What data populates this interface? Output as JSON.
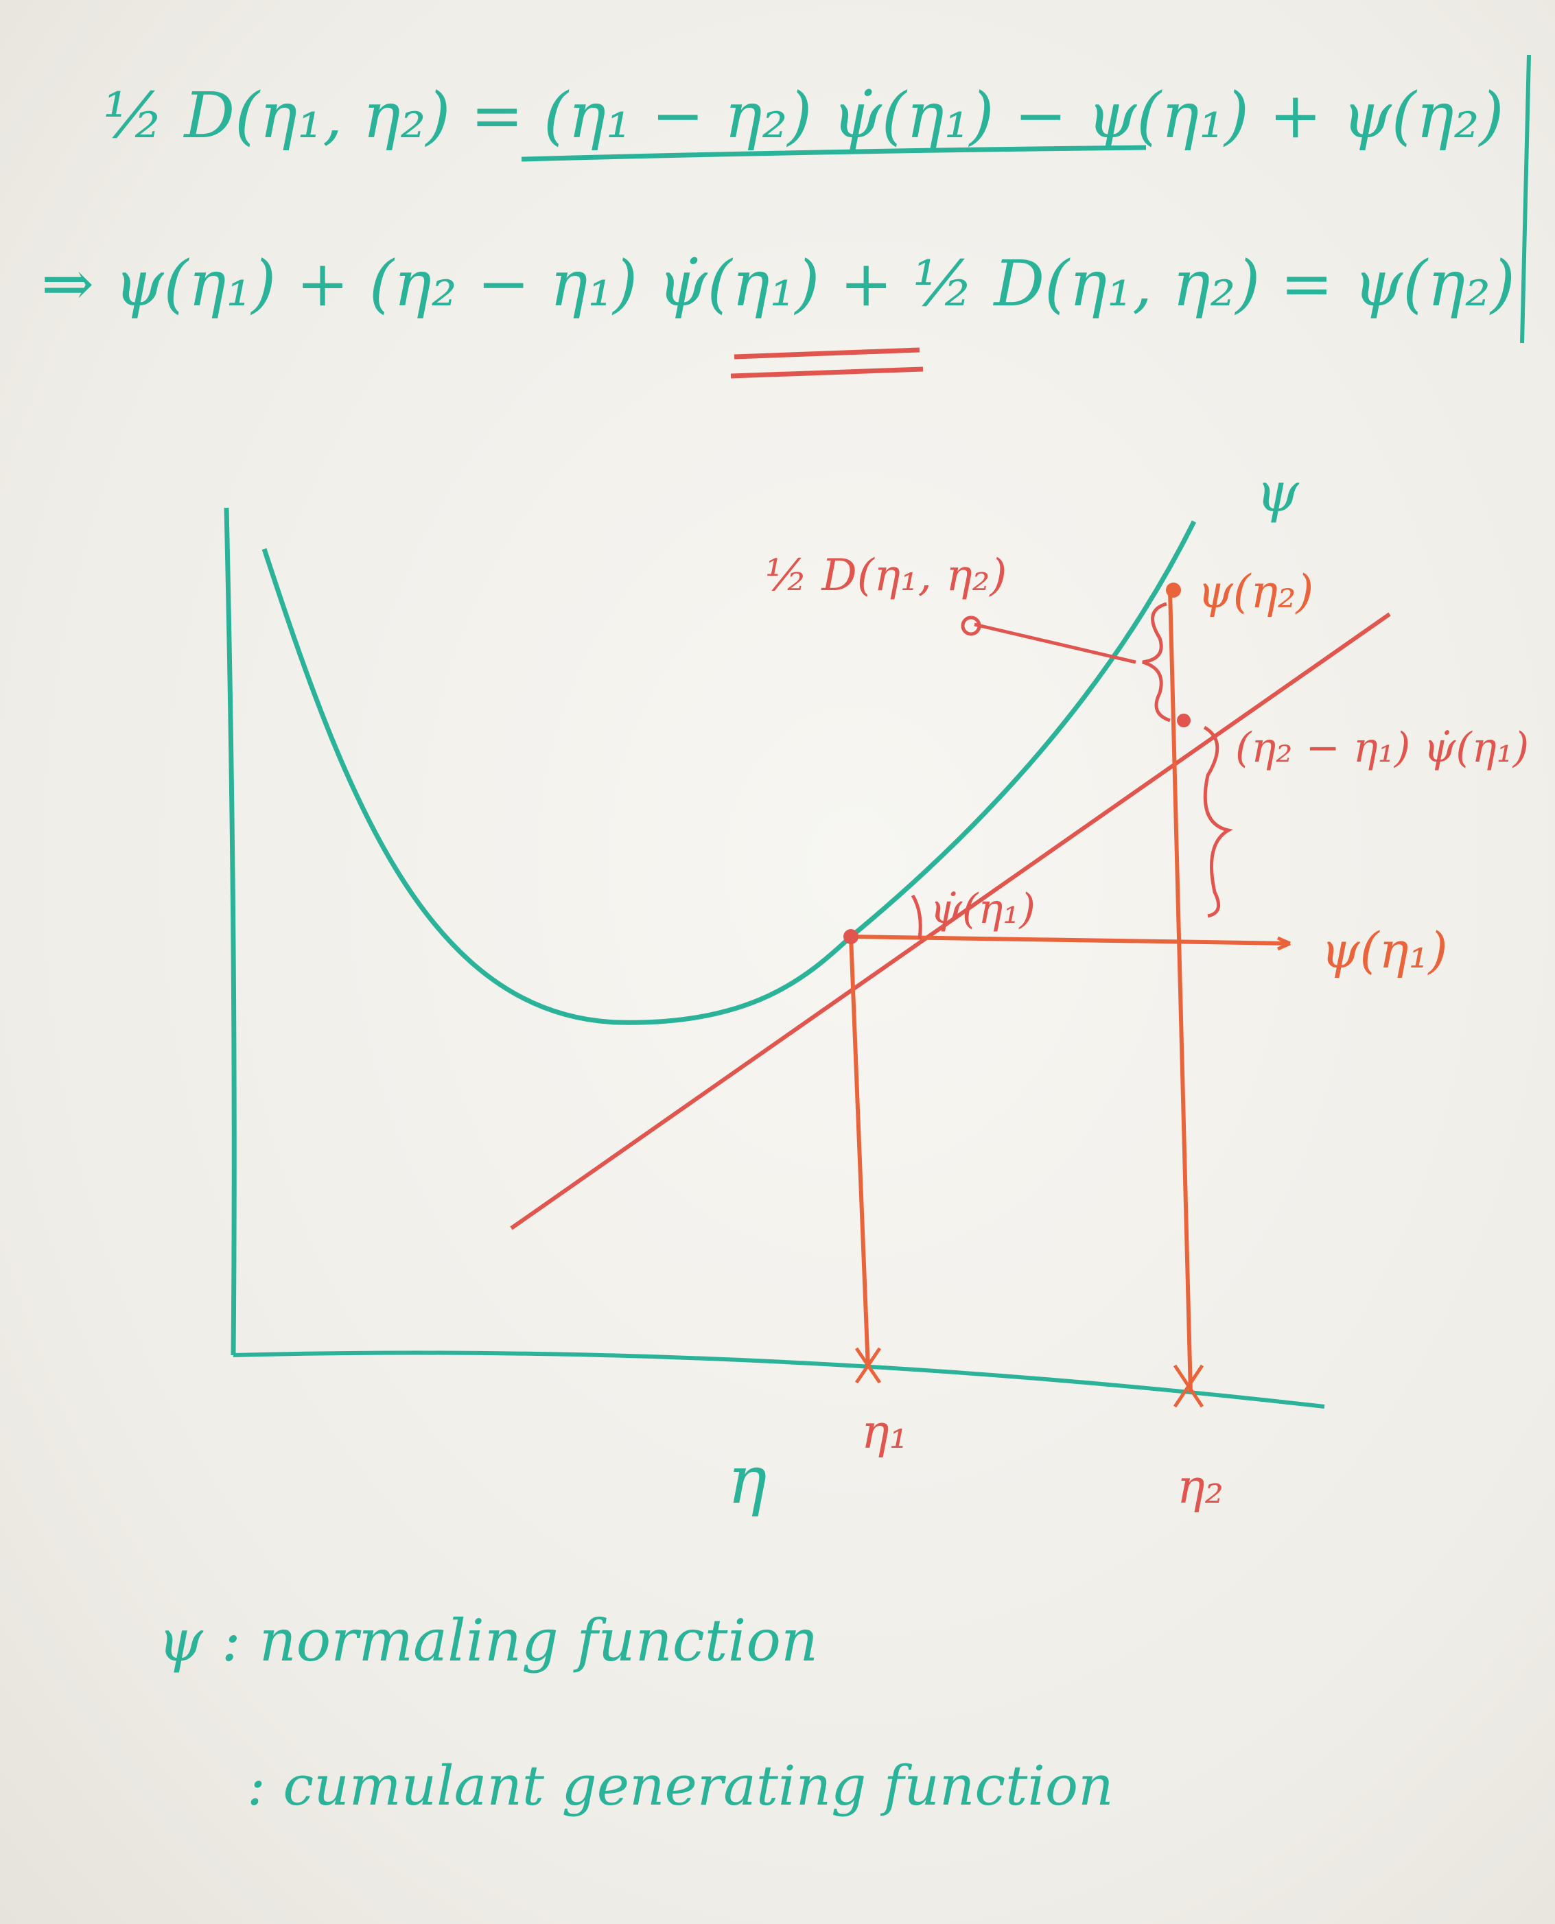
{
  "colors": {
    "board": "#f1efe9",
    "green_marker": "#2bb39a",
    "red_marker": "#e0564e",
    "orange_marker": "#e9643a"
  },
  "equations": {
    "line1": "½ D(η₁, η₂) = (η₁ − η₂) ψ̇(η₁) − ψ(η₁) + ψ(η₂)",
    "line2": "⇒ ψ(η₁) + (η₂ − η₁) ψ̇(η₁) + ½ D(η₁, η₂) = ψ(η₂)"
  },
  "diagram": {
    "curve_label": "ψ",
    "divergence_label": "½ D(η₁, η₂)",
    "psi_eta2": "ψ(η₂)",
    "increment_label": "(η₂ − η₁) ψ̇(η₁)",
    "slope_label": "ψ̇(η₁)",
    "psi_eta1": "ψ(η₁)",
    "x_label": "η",
    "tick_eta1": "η₁",
    "tick_eta2": "η₂"
  },
  "notes": {
    "line1": "ψ : normaling function",
    "line2": ": cumulant generating function"
  }
}
